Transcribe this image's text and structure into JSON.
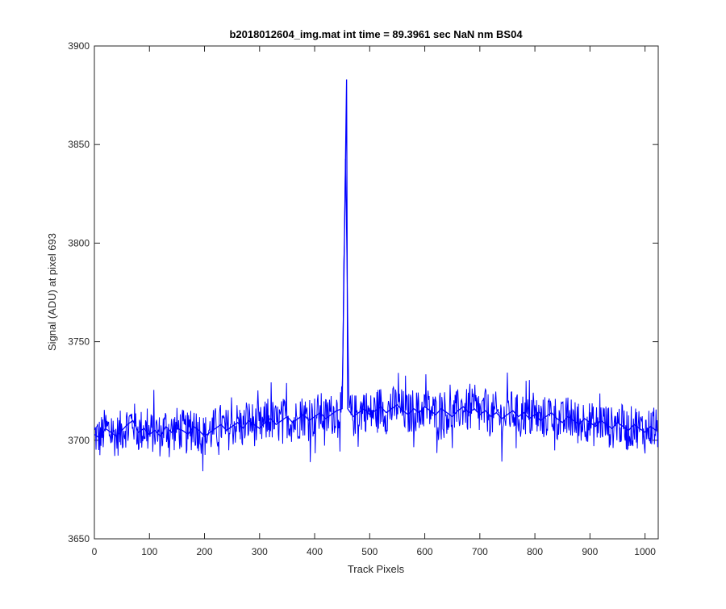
{
  "chart_data": {
    "type": "line",
    "title": "b2018012604_img.mat int time = 89.3961 sec  NaN nm BS04",
    "xlabel": "Track Pixels",
    "ylabel": "Signal (ADU) at pixel 693",
    "xlim": [
      0,
      1024
    ],
    "ylim": [
      3650,
      3900
    ],
    "xticks": [
      0,
      100,
      200,
      300,
      400,
      500,
      600,
      700,
      800,
      900,
      1000
    ],
    "yticks": [
      3650,
      3700,
      3750,
      3800,
      3850,
      3900
    ],
    "grid": false,
    "legend": "none",
    "line_color": "#0000ff",
    "series": [
      {
        "x": [
          0,
          10,
          20,
          30,
          40,
          50,
          60,
          70,
          80,
          90,
          100,
          110,
          120,
          130,
          140,
          150,
          160,
          170,
          180,
          190,
          200,
          210,
          220,
          230,
          240,
          250,
          260,
          270,
          280,
          290,
          300,
          310,
          320,
          330,
          340,
          350,
          360,
          370,
          380,
          390,
          400,
          410,
          420,
          430,
          440,
          450,
          458,
          460,
          470,
          480,
          490,
          500,
          510,
          520,
          530,
          540,
          550,
          560,
          570,
          580,
          590,
          600,
          610,
          620,
          630,
          640,
          650,
          660,
          670,
          680,
          690,
          700,
          710,
          720,
          730,
          740,
          750,
          760,
          770,
          780,
          790,
          800,
          810,
          820,
          830,
          840,
          850,
          860,
          870,
          880,
          890,
          900,
          910,
          920,
          930,
          940,
          950,
          960,
          970,
          980,
          990,
          1000,
          1010,
          1020
        ],
        "y": [
          3703,
          3701,
          3706,
          3704,
          3702,
          3705,
          3708,
          3710,
          3704,
          3706,
          3703,
          3705,
          3702,
          3707,
          3704,
          3706,
          3705,
          3703,
          3707,
          3705,
          3702,
          3704,
          3706,
          3708,
          3705,
          3707,
          3709,
          3706,
          3710,
          3708,
          3706,
          3709,
          3711,
          3708,
          3710,
          3712,
          3709,
          3711,
          3713,
          3710,
          3712,
          3714,
          3711,
          3713,
          3715,
          3716,
          3883,
          3716,
          3712,
          3714,
          3716,
          3713,
          3715,
          3717,
          3714,
          3716,
          3718,
          3715,
          3713,
          3716,
          3714,
          3717,
          3715,
          3713,
          3716,
          3714,
          3712,
          3715,
          3717,
          3714,
          3716,
          3713,
          3715,
          3712,
          3714,
          3711,
          3713,
          3715,
          3712,
          3714,
          3711,
          3713,
          3710,
          3712,
          3714,
          3711,
          3709,
          3712,
          3710,
          3708,
          3711,
          3709,
          3707,
          3710,
          3708,
          3706,
          3709,
          3707,
          3705,
          3708,
          3706,
          3704,
          3707,
          3705
        ]
      }
    ]
  }
}
